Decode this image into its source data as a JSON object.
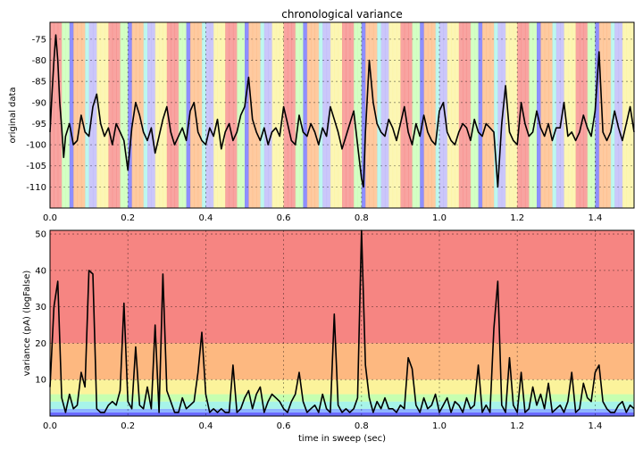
{
  "chart_data": [
    {
      "type": "line",
      "title": "chronological variance",
      "xlabel": "",
      "ylabel": "original data",
      "xlim": [
        0.0,
        1.5
      ],
      "ylim": [
        -115,
        -71
      ],
      "xticks": [
        "0.0",
        "0.2",
        "0.4",
        "0.6",
        "0.8",
        "1.0",
        "1.2",
        "1.4"
      ],
      "yticks": [
        "-75",
        "-80",
        "-85",
        "-90",
        "-95",
        "-100",
        "-105",
        "-110"
      ],
      "grid": true,
      "background_bands": "vertical bands colored by the variance level of each time segment",
      "series": [
        {
          "x": [
            0.0,
            0.005,
            0.01,
            0.015,
            0.02,
            0.025,
            0.03,
            0.035,
            0.04,
            0.05,
            0.06,
            0.07,
            0.08,
            0.09,
            0.1,
            0.11,
            0.12,
            0.13,
            0.14,
            0.15,
            0.16,
            0.17,
            0.18,
            0.19,
            0.2,
            0.21,
            0.22,
            0.23,
            0.24,
            0.25,
            0.26,
            0.27,
            0.28,
            0.29,
            0.3,
            0.31,
            0.32,
            0.33,
            0.34,
            0.35,
            0.36,
            0.37,
            0.38,
            0.39,
            0.4,
            0.41,
            0.42,
            0.43,
            0.44,
            0.45,
            0.46,
            0.47,
            0.48,
            0.49,
            0.5,
            0.51,
            0.52,
            0.53,
            0.54,
            0.55,
            0.56,
            0.57,
            0.58,
            0.59,
            0.6,
            0.61,
            0.62,
            0.63,
            0.64,
            0.65,
            0.66,
            0.67,
            0.68,
            0.69,
            0.7,
            0.71,
            0.72,
            0.73,
            0.74,
            0.75,
            0.76,
            0.77,
            0.78,
            0.79,
            0.8,
            0.805,
            0.81,
            0.82,
            0.83,
            0.84,
            0.85,
            0.86,
            0.87,
            0.88,
            0.89,
            0.9,
            0.91,
            0.92,
            0.93,
            0.94,
            0.95,
            0.96,
            0.97,
            0.98,
            0.99,
            1.0,
            1.01,
            1.02,
            1.03,
            1.04,
            1.05,
            1.06,
            1.07,
            1.08,
            1.09,
            1.1,
            1.11,
            1.12,
            1.13,
            1.14,
            1.15,
            1.16,
            1.17,
            1.18,
            1.19,
            1.2,
            1.21,
            1.22,
            1.23,
            1.24,
            1.25,
            1.26,
            1.27,
            1.28,
            1.29,
            1.3,
            1.31,
            1.32,
            1.33,
            1.34,
            1.35,
            1.36,
            1.37,
            1.38,
            1.39,
            1.4,
            1.41,
            1.42,
            1.43,
            1.44,
            1.45,
            1.46,
            1.47,
            1.48,
            1.49,
            1.5
          ],
          "y": [
            -97,
            -88,
            -80,
            -74,
            -80,
            -90,
            -96,
            -103,
            -98,
            -95,
            -100,
            -99,
            -93,
            -97,
            -98,
            -91,
            -88,
            -95,
            -98,
            -96,
            -100,
            -95,
            -97,
            -99,
            -106,
            -96,
            -90,
            -93,
            -97,
            -99,
            -96,
            -102,
            -98,
            -94,
            -91,
            -97,
            -100,
            -98,
            -96,
            -99,
            -92,
            -90,
            -97,
            -99,
            -100,
            -96,
            -98,
            -94,
            -101,
            -97,
            -95,
            -99,
            -97,
            -93,
            -91,
            -84,
            -94,
            -97,
            -99,
            -96,
            -100,
            -97,
            -96,
            -98,
            -91,
            -95,
            -99,
            -100,
            -93,
            -97,
            -98,
            -95,
            -97,
            -100,
            -96,
            -98,
            -91,
            -94,
            -97,
            -101,
            -98,
            -95,
            -92,
            -100,
            -108,
            -110,
            -97,
            -80,
            -90,
            -95,
            -97,
            -98,
            -94,
            -96,
            -99,
            -95,
            -91,
            -97,
            -100,
            -95,
            -98,
            -93,
            -97,
            -99,
            -100,
            -92,
            -90,
            -97,
            -99,
            -100,
            -97,
            -95,
            -96,
            -99,
            -94,
            -97,
            -98,
            -95,
            -96,
            -97,
            -110,
            -95,
            -86,
            -97,
            -99,
            -100,
            -90,
            -95,
            -98,
            -97,
            -92,
            -96,
            -98,
            -95,
            -99,
            -96,
            -96,
            -90,
            -98,
            -97,
            -99,
            -97,
            -93,
            -96,
            -98,
            -92,
            -78,
            -97,
            -99,
            -97,
            -92,
            -96,
            -99,
            -95,
            -91,
            -97
          ]
        }
      ]
    },
    {
      "type": "line",
      "title": "",
      "xlabel": "time in sweep (sec)",
      "ylabel": "variance (pA) (logFalse)",
      "xlim": [
        0.0,
        1.5
      ],
      "ylim": [
        0,
        51
      ],
      "xticks": [
        "0.0",
        "0.2",
        "0.4",
        "0.6",
        "0.8",
        "1.0",
        "1.2",
        "1.4"
      ],
      "yticks": [
        "10",
        "20",
        "30",
        "40",
        "50"
      ],
      "grid": true,
      "background_bands": [
        {
          "from": 0,
          "to": 1,
          "color": "#6a6aff"
        },
        {
          "from": 1,
          "to": 2,
          "color": "#8cb4ff"
        },
        {
          "from": 2,
          "to": 4,
          "color": "#a7f4e9"
        },
        {
          "from": 4,
          "to": 6,
          "color": "#c6ffb0"
        },
        {
          "from": 6,
          "to": 10,
          "color": "#fbf39b"
        },
        {
          "from": 10,
          "to": 20,
          "color": "#fdb880"
        },
        {
          "from": 20,
          "to": 51,
          "color": "#f68582"
        }
      ],
      "series": [
        {
          "x": [
            0.0,
            0.01,
            0.02,
            0.03,
            0.04,
            0.05,
            0.06,
            0.07,
            0.08,
            0.09,
            0.1,
            0.11,
            0.12,
            0.13,
            0.14,
            0.15,
            0.16,
            0.17,
            0.18,
            0.19,
            0.2,
            0.21,
            0.22,
            0.23,
            0.24,
            0.25,
            0.26,
            0.27,
            0.28,
            0.29,
            0.3,
            0.31,
            0.32,
            0.33,
            0.34,
            0.35,
            0.36,
            0.37,
            0.38,
            0.39,
            0.4,
            0.41,
            0.42,
            0.43,
            0.44,
            0.45,
            0.46,
            0.47,
            0.48,
            0.49,
            0.5,
            0.51,
            0.52,
            0.53,
            0.54,
            0.55,
            0.56,
            0.57,
            0.58,
            0.59,
            0.6,
            0.61,
            0.62,
            0.63,
            0.64,
            0.65,
            0.66,
            0.67,
            0.68,
            0.69,
            0.7,
            0.71,
            0.72,
            0.73,
            0.74,
            0.75,
            0.76,
            0.77,
            0.78,
            0.79,
            0.8,
            0.81,
            0.82,
            0.83,
            0.84,
            0.85,
            0.86,
            0.87,
            0.88,
            0.89,
            0.9,
            0.91,
            0.92,
            0.93,
            0.94,
            0.95,
            0.96,
            0.97,
            0.98,
            0.99,
            1.0,
            1.01,
            1.02,
            1.03,
            1.04,
            1.05,
            1.06,
            1.07,
            1.08,
            1.09,
            1.1,
            1.11,
            1.12,
            1.13,
            1.14,
            1.15,
            1.16,
            1.17,
            1.18,
            1.19,
            1.2,
            1.21,
            1.22,
            1.23,
            1.24,
            1.25,
            1.26,
            1.27,
            1.28,
            1.29,
            1.3,
            1.31,
            1.32,
            1.33,
            1.34,
            1.35,
            1.36,
            1.37,
            1.38,
            1.39,
            1.4,
            1.41,
            1.42,
            1.43,
            1.44,
            1.45,
            1.46,
            1.47,
            1.48,
            1.49,
            1.5
          ],
          "y": [
            8,
            30,
            37,
            5,
            1,
            6,
            2,
            3,
            12,
            8,
            40,
            39,
            2,
            1,
            1,
            3,
            4,
            3,
            7,
            31,
            4,
            2,
            19,
            3,
            2,
            8,
            2,
            25,
            1,
            39,
            7,
            4,
            1,
            1,
            5,
            2,
            3,
            4,
            12,
            23,
            6,
            1,
            2,
            1,
            2,
            1,
            1,
            14,
            1,
            2,
            5,
            7,
            2,
            6,
            8,
            1,
            4,
            6,
            5,
            4,
            2,
            1,
            4,
            6,
            12,
            4,
            1,
            2,
            3,
            1,
            6,
            2,
            1,
            28,
            3,
            1,
            2,
            1,
            2,
            5,
            51,
            14,
            5,
            1,
            4,
            2,
            5,
            2,
            2,
            1,
            3,
            2,
            16,
            13,
            3,
            1,
            5,
            2,
            3,
            6,
            1,
            3,
            5,
            1,
            4,
            3,
            1,
            5,
            2,
            3,
            14,
            1,
            3,
            1,
            24,
            37,
            3,
            1,
            16,
            3,
            1,
            12,
            1,
            2,
            8,
            3,
            6,
            2,
            9,
            1,
            2,
            3,
            1,
            4,
            12,
            1,
            2,
            9,
            5,
            4,
            12,
            14,
            4,
            2,
            1,
            1,
            3,
            4,
            1,
            3,
            2
          ]
        }
      ]
    }
  ]
}
